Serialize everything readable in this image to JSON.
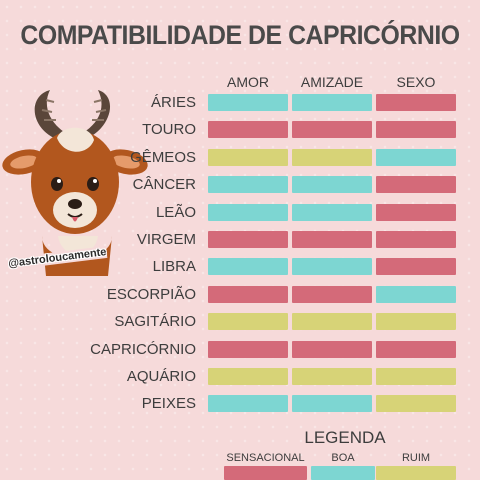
{
  "title": "COMPATIBILIDADE DE CAPRICÓRNIO",
  "handle": "@astroloucamente",
  "colors": {
    "sensacional": "#d46a79",
    "boa": "#7dd6d2",
    "ruim": "#d7d377"
  },
  "columns": [
    "AMOR",
    "AMIZADE",
    "SEXO"
  ],
  "rows": [
    {
      "sign": "ÁRIES",
      "ratings": [
        "boa",
        "boa",
        "sensacional"
      ]
    },
    {
      "sign": "TOURO",
      "ratings": [
        "sensacional",
        "sensacional",
        "sensacional"
      ]
    },
    {
      "sign": "GÊMEOS",
      "ratings": [
        "ruim",
        "ruim",
        "boa"
      ]
    },
    {
      "sign": "CÂNCER",
      "ratings": [
        "boa",
        "boa",
        "sensacional"
      ]
    },
    {
      "sign": "LEÃO",
      "ratings": [
        "boa",
        "boa",
        "sensacional"
      ]
    },
    {
      "sign": "VIRGEM",
      "ratings": [
        "sensacional",
        "sensacional",
        "sensacional"
      ]
    },
    {
      "sign": "LIBRA",
      "ratings": [
        "boa",
        "boa",
        "sensacional"
      ]
    },
    {
      "sign": "ESCORPIÃO",
      "ratings": [
        "sensacional",
        "sensacional",
        "boa"
      ]
    },
    {
      "sign": "SAGITÁRIO",
      "ratings": [
        "ruim",
        "ruim",
        "ruim"
      ]
    },
    {
      "sign": "CAPRICÓRNIO",
      "ratings": [
        "sensacional",
        "sensacional",
        "sensacional"
      ]
    },
    {
      "sign": "AQUÁRIO",
      "ratings": [
        "ruim",
        "ruim",
        "ruim"
      ]
    },
    {
      "sign": "PEIXES",
      "ratings": [
        "boa",
        "boa",
        "ruim"
      ]
    }
  ],
  "legend": {
    "title": "LEGENDA",
    "items": [
      {
        "key": "sensacional",
        "label": "SENSACIONAL"
      },
      {
        "key": "boa",
        "label": "BOA"
      },
      {
        "key": "ruim",
        "label": "RUIM"
      }
    ]
  }
}
